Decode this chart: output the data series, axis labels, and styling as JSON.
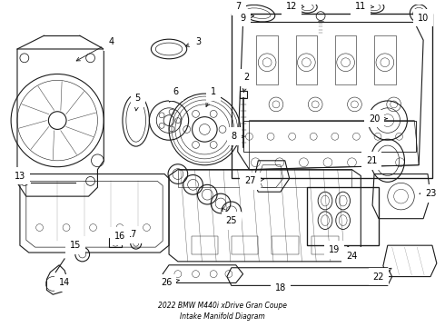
{
  "title": "2022 BMW M440i xDrive Gran Coupe\nIntake Manifold Diagram",
  "bg_color": "#ffffff",
  "line_color": "#1a1a1a",
  "text_color": "#000000",
  "fig_width": 4.9,
  "fig_height": 3.6,
  "dpi": 100
}
